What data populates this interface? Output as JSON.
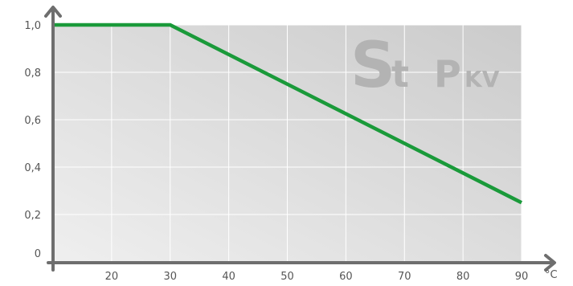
{
  "chart_data": {
    "type": "line",
    "title": "",
    "xlabel": "",
    "ylabel": "",
    "x_unit": "°C",
    "xlim": [
      10,
      90
    ],
    "ylim": [
      0,
      1.0
    ],
    "x_ticks": [
      20,
      30,
      40,
      50,
      60,
      70,
      80,
      90
    ],
    "x_tick_labels": [
      "20",
      "30",
      "40",
      "50",
      "60",
      "70",
      "80",
      "90"
    ],
    "y_ticks": [
      0,
      0.2,
      0.4,
      0.6,
      0.8,
      1.0
    ],
    "y_tick_labels": [
      "0",
      "0,2",
      "0,4",
      "0,6",
      "0,8",
      "1,0"
    ],
    "grid": true,
    "legend": "none",
    "series": [
      {
        "color": "#1a9a3a",
        "x": [
          10,
          30,
          90
        ],
        "y": [
          1.0,
          1.0,
          0.25
        ]
      }
    ]
  },
  "watermark": {
    "s": "S",
    "t": "t",
    "p": "P",
    "kv": "KV"
  },
  "colors": {
    "axis": "#6e6e6e",
    "plot_bg_start": "#efefef",
    "plot_bg_end": "#cfcfcf",
    "grid": "#ffffff",
    "line": "#1a9a3a"
  }
}
